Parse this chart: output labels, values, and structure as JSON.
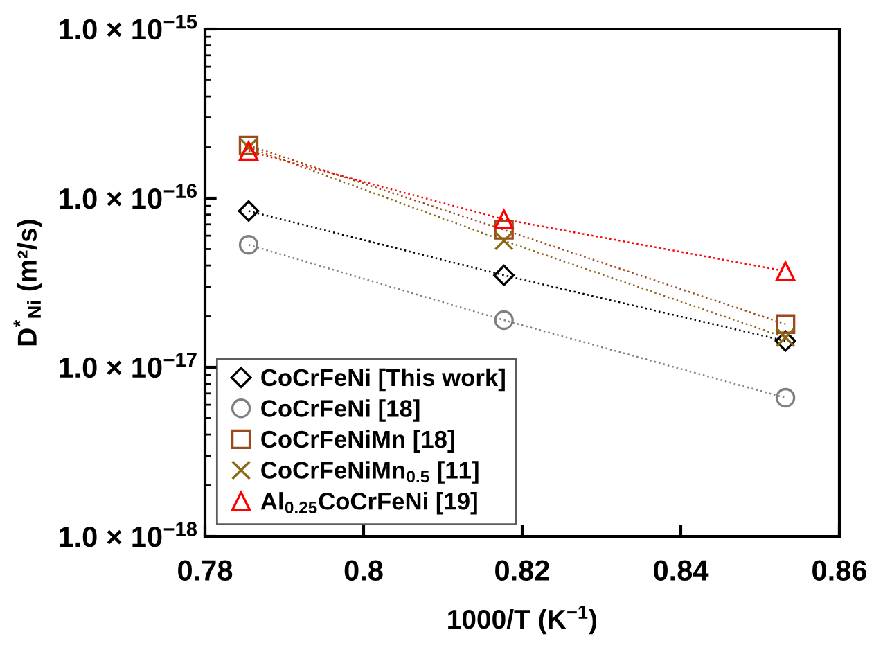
{
  "chart_data": {
    "type": "line",
    "xlabel": "1000/T (K$^{−1}$)",
    "ylabel": "D$^{*}$$_{Ni}$ (m²/s)",
    "x": [
      0.7855,
      0.8177,
      0.8532
    ],
    "series": [
      {
        "name": "CoCrFeNi [This work]",
        "color": "#000000",
        "marker": "diamond",
        "values": [
          8.4e-17,
          3.5e-17,
          1.43e-17
        ]
      },
      {
        "name": "CoCrFeNi [18]",
        "color": "#808080",
        "marker": "circle",
        "values": [
          5.3e-17,
          1.9e-17,
          6.6e-18
        ]
      },
      {
        "name": "CoCrFeNiMn [18]",
        "color": "#9c4a1c",
        "marker": "square",
        "values": [
          2.05e-16,
          6.5e-17,
          1.8e-17
        ]
      },
      {
        "name": "CoCrFeNiMn$_{0.5}$ [11]",
        "color": "#8b6914",
        "marker": "cross",
        "values": [
          2e-16,
          5.6e-17,
          1.5e-17
        ]
      },
      {
        "name": "Al$_{0.25}$CoCrFeNi [19]",
        "color": "#ff0000",
        "marker": "triangle",
        "values": [
          1.9e-16,
          7.5e-17,
          3.7e-17
        ]
      }
    ],
    "log": "y",
    "line_style": "dotted",
    "grid": false,
    "legend": "bottom left",
    "xlim": [
      0.78,
      0.86
    ],
    "xticks": [
      0.78,
      0.8,
      0.82,
      0.84,
      0.86
    ],
    "ylim": [
      1e-18,
      1e-15
    ],
    "yticks": [
      {
        "value": 1e-18,
        "label": "1.0 × 10$^{−18}$"
      },
      {
        "value": 1e-17,
        "label": "1.0 × 10$^{−17}$"
      },
      {
        "value": 1e-16,
        "label": "1.0 × 10$^{−16}$"
      },
      {
        "value": 1e-15,
        "label": "1.0 × 10$^{−15}$"
      }
    ]
  }
}
